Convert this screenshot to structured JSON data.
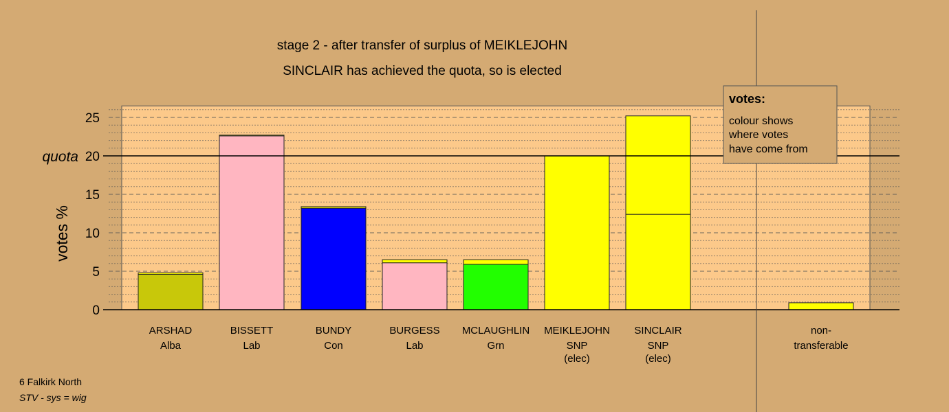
{
  "chart_data": {
    "type": "bar",
    "title": "stage 2 - after transfer of surplus of MEIKLEJOHN",
    "subtitle": "SINCLAIR has achieved the quota, so is elected",
    "ylabel": "votes %",
    "ylim": [
      0,
      26.5
    ],
    "yticks": [
      0,
      5,
      10,
      15,
      20,
      25
    ],
    "quota": {
      "value": 20,
      "label": "quota"
    },
    "grid": true,
    "legend": {
      "title": "votes:",
      "lines": [
        "colour shows",
        "where votes",
        "have come from"
      ],
      "position": "top-right"
    },
    "candidates": [
      {
        "name": "ARSHAD",
        "party": "Alba",
        "note": "",
        "segments": [
          {
            "value": 4.6,
            "color": "#c8c80a"
          },
          {
            "value": 0.2,
            "color": "#ffff00"
          }
        ]
      },
      {
        "name": "BISSETT",
        "party": "Lab",
        "note": "",
        "segments": [
          {
            "value": 22.6,
            "color": "#ffb6c1"
          },
          {
            "value": 0.1,
            "color": "#ffff00"
          }
        ]
      },
      {
        "name": "BUNDY",
        "party": "Con",
        "note": "",
        "segments": [
          {
            "value": 13.2,
            "color": "#0000ff"
          },
          {
            "value": 0.2,
            "color": "#ffff00"
          }
        ]
      },
      {
        "name": "BURGESS",
        "party": "Lab",
        "note": "",
        "segments": [
          {
            "value": 6.1,
            "color": "#ffb6c1"
          },
          {
            "value": 0.4,
            "color": "#ffff00"
          }
        ]
      },
      {
        "name": "MCLAUGHLIN",
        "party": "Grn",
        "note": "",
        "segments": [
          {
            "value": 5.9,
            "color": "#22ff00"
          },
          {
            "value": 0.6,
            "color": "#ffff00"
          }
        ]
      },
      {
        "name": "MEIKLEJOHN",
        "party": "SNP",
        "note": "(elec)",
        "segments": [
          {
            "value": 20.0,
            "color": "#ffff00"
          }
        ]
      },
      {
        "name": "SINCLAIR",
        "party": "SNP",
        "note": "(elec)",
        "segments": [
          {
            "value": 12.4,
            "color": "#ffff00"
          },
          {
            "value": 12.8,
            "color": "#ffff00"
          }
        ]
      }
    ],
    "nontransferable": {
      "label_line1": "non-",
      "label_line2": "transferable",
      "value": 0.9,
      "color": "#ffff00"
    }
  },
  "footer": {
    "line1": "6 Falkirk North",
    "line2": "STV - sys = wig"
  },
  "colors": {
    "background": "#d4aa73",
    "plot_area": "#fcc98a"
  }
}
